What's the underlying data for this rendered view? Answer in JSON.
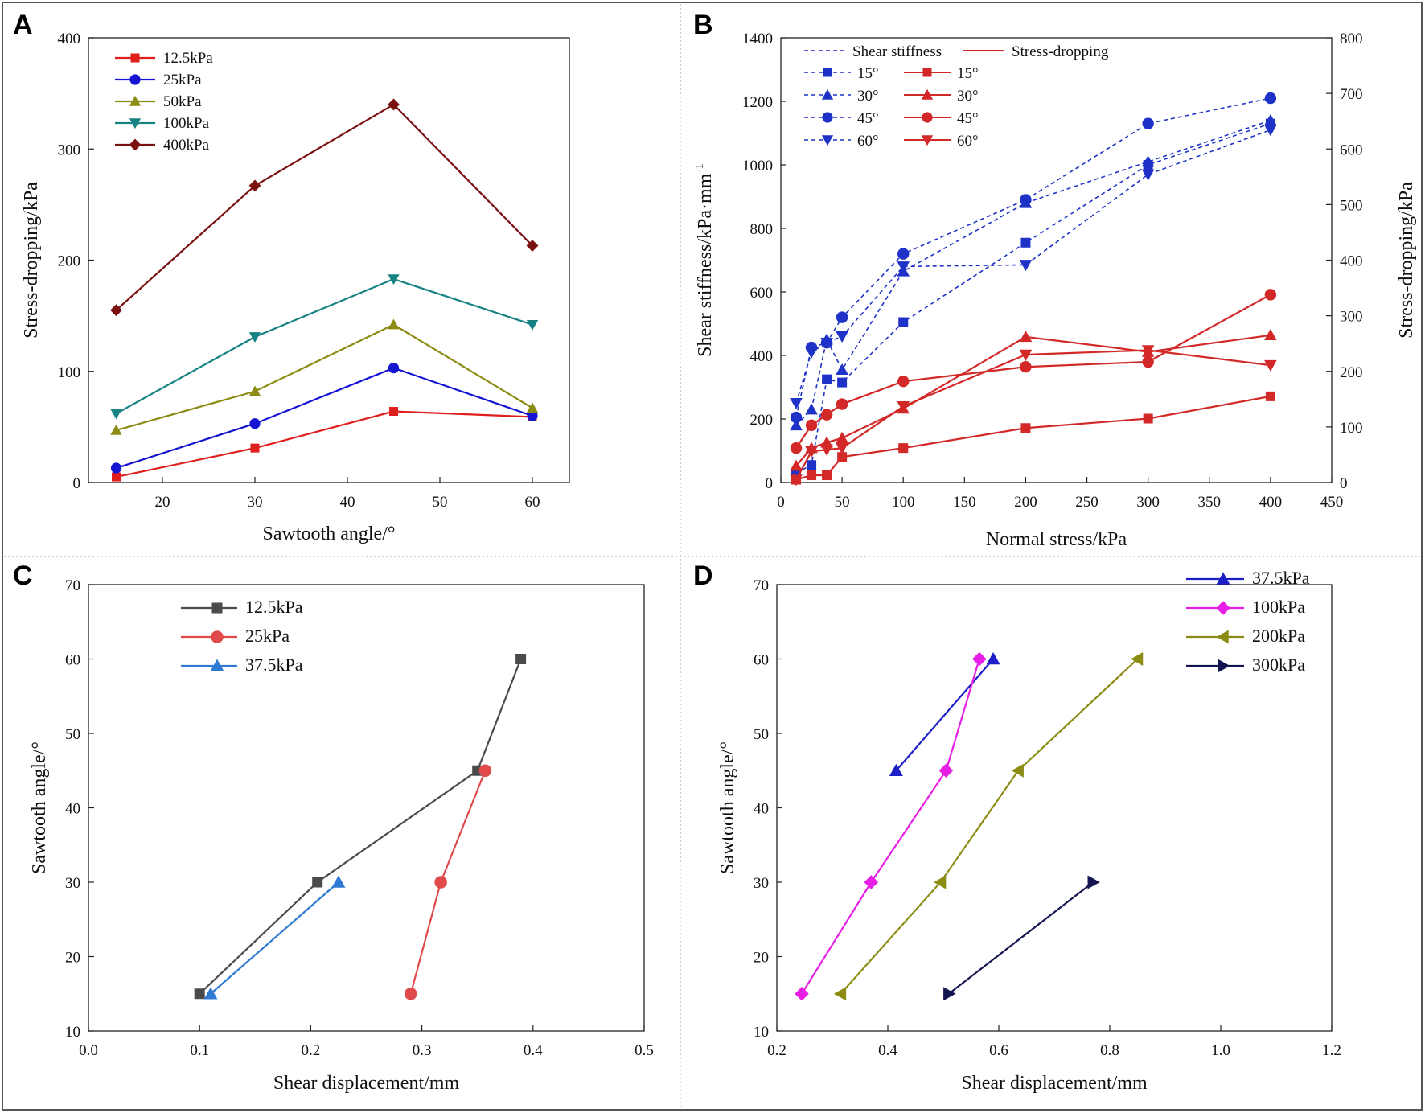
{
  "figure": {
    "panels": [
      "A",
      "B",
      "C",
      "D"
    ],
    "frame_color": "#555555",
    "divider_color": "#aaaaaa"
  },
  "chart_data": [
    {
      "id": "A",
      "type": "line",
      "title": "",
      "xlabel": "Sawtooth angle/°",
      "ylabel": "Stress-dropping/kPa",
      "xlim": [
        12,
        64
      ],
      "ylim": [
        0,
        400
      ],
      "xticks": [
        20,
        30,
        40,
        50,
        60
      ],
      "yticks": [
        0,
        100,
        200,
        300,
        400
      ],
      "x": [
        15,
        30,
        45,
        60
      ],
      "series": [
        {
          "name": "12.5kPa",
          "color": "#e01e1e",
          "marker": "square",
          "values": [
            5,
            31,
            64,
            59
          ]
        },
        {
          "name": "25kPa",
          "color": "#1414d2",
          "marker": "circle",
          "values": [
            13,
            53,
            103,
            60
          ]
        },
        {
          "name": "50kPa",
          "color": "#8c8c14",
          "marker": "triangle-up",
          "values": [
            47,
            82,
            142,
            67
          ]
        },
        {
          "name": "100kPa",
          "color": "#168282",
          "marker": "triangle-down",
          "values": [
            62,
            131,
            183,
            142
          ]
        },
        {
          "name": "400kPa",
          "color": "#7a1010",
          "marker": "diamond",
          "values": [
            155,
            267,
            340,
            213
          ]
        }
      ],
      "legend": "top-left"
    },
    {
      "id": "B",
      "type": "line",
      "title": "",
      "xlabel": "Normal stress/kPa",
      "ylabel": "Shear stiffness/kPa·mm",
      "ylabel_sup": "-1",
      "y2label": "Stress-dropping/kPa",
      "xlim": [
        0,
        450
      ],
      "ylim": [
        0,
        1400
      ],
      "y2lim": [
        0,
        800
      ],
      "xticks": [
        0,
        50,
        100,
        150,
        200,
        250,
        300,
        350,
        400,
        450
      ],
      "yticks": [
        0,
        200,
        400,
        600,
        800,
        1000,
        1200,
        1400
      ],
      "y2ticks": [
        0,
        100,
        200,
        300,
        400,
        500,
        600,
        700,
        800
      ],
      "x": [
        12.5,
        25,
        37.5,
        50,
        100,
        200,
        300,
        400
      ],
      "legend_headers": [
        "Shear stiffness",
        "Stress-dropping"
      ],
      "legend": "top-left",
      "series": [
        {
          "name": "15°",
          "group": "Shear stiffness",
          "axis": "left",
          "color": "#1e32c8",
          "marker": "square",
          "dash": true,
          "values": [
            30,
            55,
            325,
            315,
            505,
            755,
            1000,
            1130
          ]
        },
        {
          "name": "30°",
          "group": "Shear stiffness",
          "axis": "left",
          "color": "#1e32c8",
          "marker": "triangle-up",
          "dash": true,
          "values": [
            180,
            230,
            450,
            355,
            665,
            880,
            1010,
            1140
          ]
        },
        {
          "name": "45°",
          "group": "Shear stiffness",
          "axis": "left",
          "color": "#1e32c8",
          "marker": "circle",
          "dash": true,
          "values": [
            205,
            425,
            440,
            520,
            720,
            890,
            1130,
            1210
          ]
        },
        {
          "name": "60°",
          "group": "Shear stiffness",
          "axis": "left",
          "color": "#1e32c8",
          "marker": "triangle-down",
          "dash": true,
          "values": [
            250,
            410,
            440,
            460,
            680,
            685,
            970,
            1110
          ]
        },
        {
          "name": "15°",
          "group": "Stress-dropping",
          "axis": "right",
          "color": "#d22828",
          "marker": "square",
          "dash": false,
          "values": [
            5,
            13,
            13,
            46,
            62,
            98,
            115,
            155
          ]
        },
        {
          "name": "30°",
          "group": "Stress-dropping",
          "axis": "right",
          "color": "#d22828",
          "marker": "triangle-up",
          "dash": false,
          "values": [
            30,
            62,
            72,
            80,
            133,
            262,
            235,
            265
          ]
        },
        {
          "name": "45°",
          "group": "Stress-dropping",
          "axis": "right",
          "color": "#d22828",
          "marker": "circle",
          "dash": false,
          "values": [
            62,
            103,
            122,
            141,
            182,
            208,
            217,
            338
          ]
        },
        {
          "name": "60°",
          "group": "Stress-dropping",
          "axis": "right",
          "color": "#d22828",
          "marker": "triangle-down",
          "dash": false,
          "values": [
            5,
            56,
            59,
            62,
            137,
            230,
            238,
            211
          ]
        }
      ]
    },
    {
      "id": "C",
      "type": "line",
      "title": "",
      "xlabel": "Shear displacement/mm",
      "ylabel": "Sawtooth angle/°",
      "xlim": [
        0.0,
        0.5
      ],
      "ylim": [
        10,
        70
      ],
      "xticks": [
        0.0,
        0.1,
        0.2,
        0.3,
        0.4,
        0.5
      ],
      "yticks": [
        10,
        20,
        30,
        40,
        50,
        60,
        70
      ],
      "legend": "top-left",
      "series": [
        {
          "name": "12.5kPa",
          "color": "#4a4a4a",
          "marker": "square",
          "x": [
            0.1,
            0.206,
            0.35,
            0.389
          ],
          "y": [
            15,
            30,
            45,
            60
          ]
        },
        {
          "name": "25kPa",
          "color": "#e04a4a",
          "marker": "circle",
          "x": [
            0.29,
            0.317,
            0.357
          ],
          "y": [
            15,
            30,
            45
          ]
        },
        {
          "name": "37.5kPa",
          "color": "#2f7ad2",
          "marker": "triangle-up",
          "x": [
            0.11,
            0.225
          ],
          "y": [
            15,
            30
          ]
        }
      ]
    },
    {
      "id": "D",
      "type": "line",
      "title": "",
      "xlabel": "Shear displacement/mm",
      "ylabel": "Sawtooth angle/°",
      "xlim": [
        0.2,
        1.2
      ],
      "ylim": [
        10,
        70
      ],
      "xticks": [
        0.2,
        0.4,
        0.6,
        0.8,
        1.0,
        1.2
      ],
      "yticks": [
        10,
        20,
        30,
        40,
        50,
        60,
        70
      ],
      "legend": "top-right",
      "series": [
        {
          "name": "37.5kPa",
          "color": "#1e1ec8",
          "marker": "triangle-up",
          "x": [
            0.415,
            0.59
          ],
          "y": [
            45,
            60
          ]
        },
        {
          "name": "100kPa",
          "color": "#e61ee6",
          "marker": "diamond",
          "x": [
            0.245,
            0.37,
            0.505,
            0.565
          ],
          "y": [
            15,
            30,
            45,
            60
          ]
        },
        {
          "name": "200kPa",
          "color": "#8c8c14",
          "marker": "triangle-left",
          "x": [
            0.315,
            0.495,
            0.635,
            0.85
          ],
          "y": [
            15,
            30,
            45,
            60
          ]
        },
        {
          "name": "300kPa",
          "color": "#141450",
          "marker": "triangle-right",
          "x": [
            0.51,
            0.77
          ],
          "y": [
            15,
            30
          ]
        }
      ]
    }
  ]
}
